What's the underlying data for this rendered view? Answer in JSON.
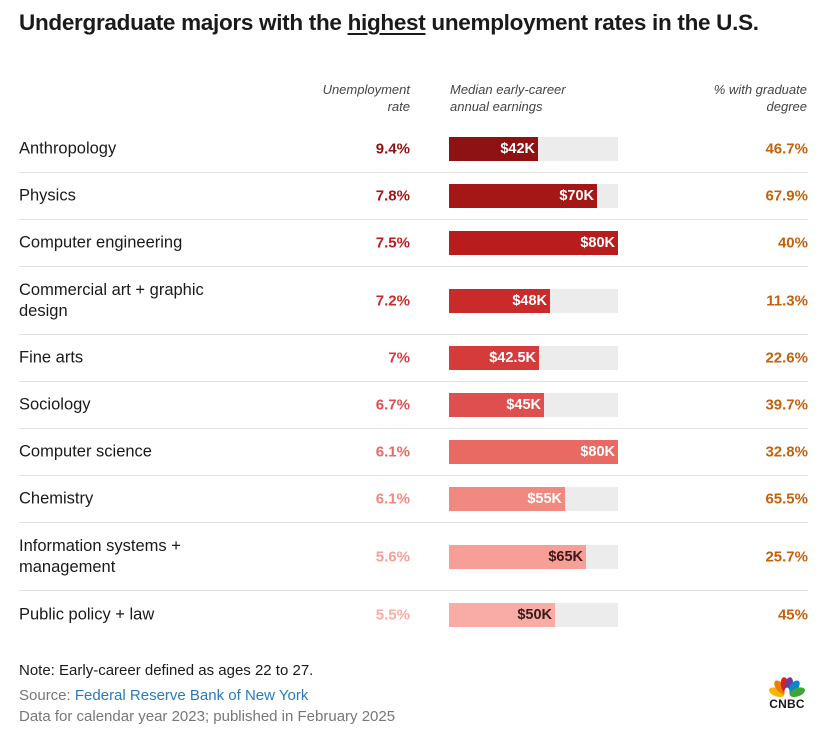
{
  "title": {
    "before": "Undergraduate majors with the ",
    "highlight": "highest",
    "after": " unemployment rates in the U.S."
  },
  "headers": {
    "unemployment_line1": "Unemployment",
    "unemployment_line2": "rate",
    "earnings_line1": "Median early-career",
    "earnings_line2": "annual earnings",
    "graduate_line1": "% with graduate",
    "graduate_line2": "degree"
  },
  "colors": {
    "grad_text": "#c2620c",
    "track": "#ececec",
    "source_link": "#2a7ab8"
  },
  "chart_data": {
    "type": "table",
    "max_earnings": 80000,
    "rows": [
      {
        "major": "Anthropology",
        "rate": "9.4%",
        "earnings": 42000,
        "earnings_label": "$42K",
        "grad": "46.7%",
        "color": "#8e1212",
        "label_color": "#ffffff"
      },
      {
        "major": "Physics",
        "rate": "7.8%",
        "earnings": 70000,
        "earnings_label": "$70K",
        "grad": "67.9%",
        "color": "#a51616",
        "label_color": "#ffffff"
      },
      {
        "major": "Computer engineering",
        "rate": "7.5%",
        "earnings": 80000,
        "earnings_label": "$80K",
        "grad": "40%",
        "color": "#b81c1c",
        "label_color": "#ffffff"
      },
      {
        "major": "Commercial art + graphic design",
        "rate": "7.2%",
        "earnings": 48000,
        "earnings_label": "$48K",
        "grad": "11.3%",
        "color": "#c92a2a",
        "label_color": "#ffffff"
      },
      {
        "major": "Fine arts",
        "rate": "7%",
        "earnings": 42500,
        "earnings_label": "$42.5K",
        "grad": "22.6%",
        "color": "#d63b3b",
        "label_color": "#ffffff"
      },
      {
        "major": "Sociology",
        "rate": "6.7%",
        "earnings": 45000,
        "earnings_label": "$45K",
        "grad": "39.7%",
        "color": "#e04f4f",
        "label_color": "#ffffff"
      },
      {
        "major": "Computer science",
        "rate": "6.1%",
        "earnings": 80000,
        "earnings_label": "$80K",
        "grad": "32.8%",
        "color": "#e86a62",
        "label_color": "#ffffff"
      },
      {
        "major": "Chemistry",
        "rate": "6.1%",
        "earnings": 55000,
        "earnings_label": "$55K",
        "grad": "65.5%",
        "color": "#f08a80",
        "label_color": "#ffffff"
      },
      {
        "major": "Information systems + management",
        "rate": "5.6%",
        "earnings": 65000,
        "earnings_label": "$65K",
        "grad": "25.7%",
        "color": "#f79e96",
        "label_color": "#3a1a1a"
      },
      {
        "major": "Public policy + law",
        "rate": "5.5%",
        "earnings": 50000,
        "earnings_label": "$50K",
        "grad": "45%",
        "color": "#f9aca5",
        "label_color": "#3a1a1a"
      }
    ]
  },
  "footer": {
    "note": "Note: Early-career defined as ages 22 to 27.",
    "source_prefix": "Source: ",
    "source_link": "Federal Reserve Bank of New York",
    "data_for": "Data for calendar year 2023; published in February 2025"
  },
  "logo": {
    "text": "CNBC",
    "petal_colors": [
      "#f7b500",
      "#ef7d00",
      "#d3232a",
      "#6f3d97",
      "#0089cf",
      "#3fa535"
    ]
  }
}
